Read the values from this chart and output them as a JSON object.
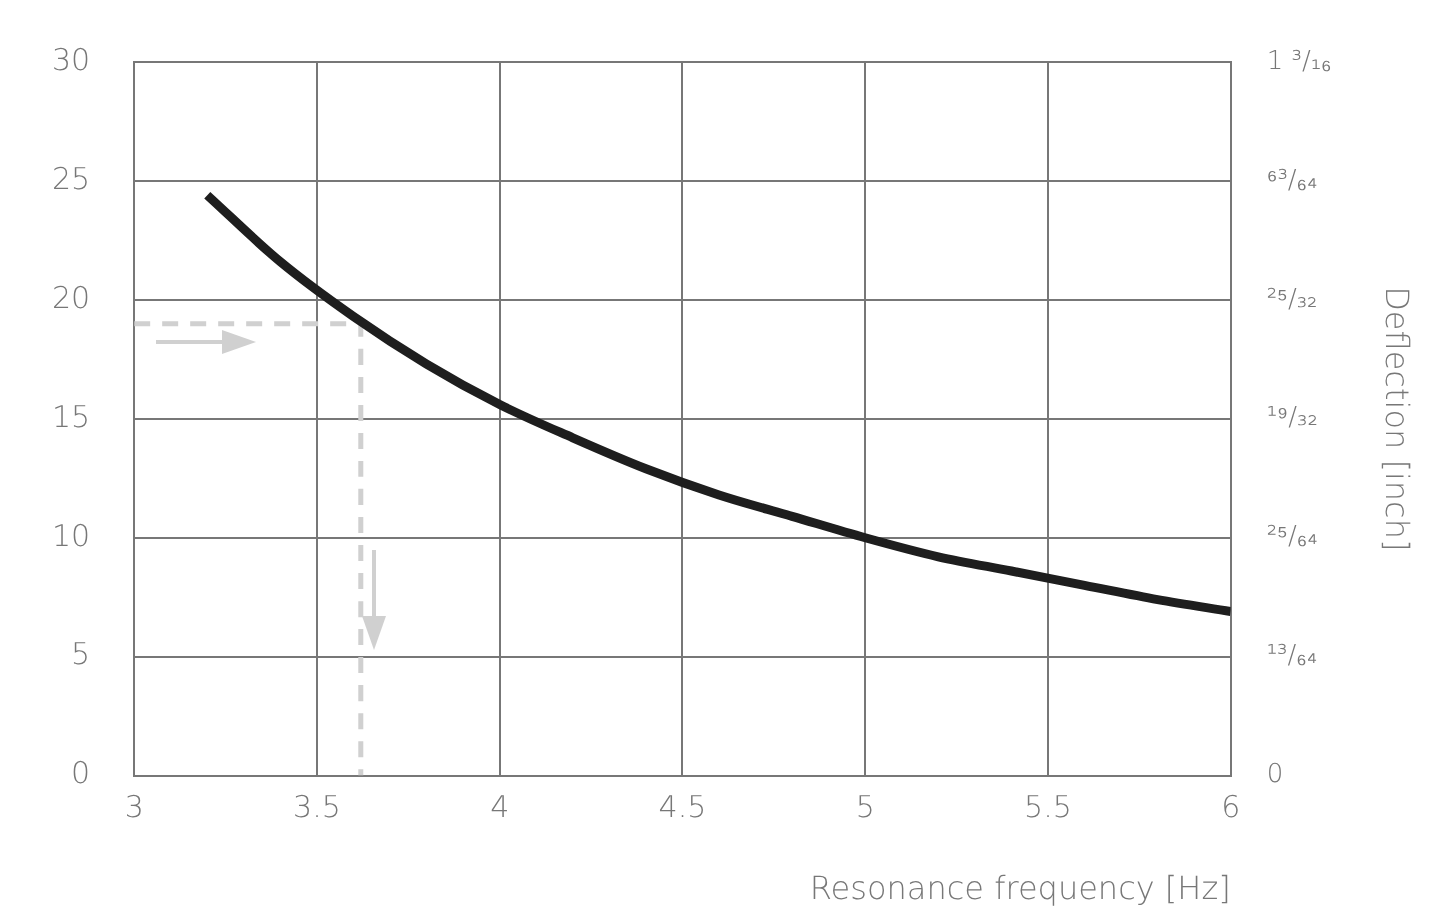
{
  "chart_data": {
    "type": "line",
    "xlabel": "Resonance frequency [Hz]",
    "y2label": "Deflection [inch]",
    "xlim": [
      3,
      6
    ],
    "xticks": [
      3,
      3.5,
      4,
      4.5,
      5,
      5.5,
      6
    ],
    "ylim": [
      0,
      30
    ],
    "yticks": [
      0,
      5,
      10,
      15,
      20,
      25,
      30
    ],
    "y2lim": [
      0,
      1.181
    ],
    "y2ticks": [
      {
        "value": 0,
        "label": "0"
      },
      {
        "value": 0.197,
        "label": "¹³/₆₄"
      },
      {
        "value": 0.394,
        "label": "²⁵/₆₄"
      },
      {
        "value": 0.591,
        "label": "¹⁹/₃₂"
      },
      {
        "value": 0.787,
        "label": "²⁵/₃₂"
      },
      {
        "value": 0.984,
        "label": "⁶³/₆₄"
      },
      {
        "value": 1.181,
        "label": "1 ³/₁₆"
      }
    ],
    "grid": true,
    "legend": false,
    "marker": "none",
    "series": [
      {
        "color": "#1e1e1e",
        "line_style": "solid",
        "x": [
          3.2,
          3.4,
          3.6,
          3.8,
          4,
          4.2,
          4.4,
          4.6,
          4.8,
          5,
          5.2,
          5.4,
          5.6,
          5.8,
          6
        ],
        "values": [
          24.4,
          21.6,
          19.3,
          17.3,
          15.6,
          14.2,
          12.9,
          11.8,
          10.9,
          10.0,
          9.2,
          8.6,
          8.0,
          7.4,
          6.9
        ]
      },
      {
        "color": "#d0d0d0",
        "line_style": "dashed",
        "x": [
          3,
          3.62,
          3.62
        ],
        "values": [
          19,
          19,
          0
        ]
      }
    ]
  }
}
